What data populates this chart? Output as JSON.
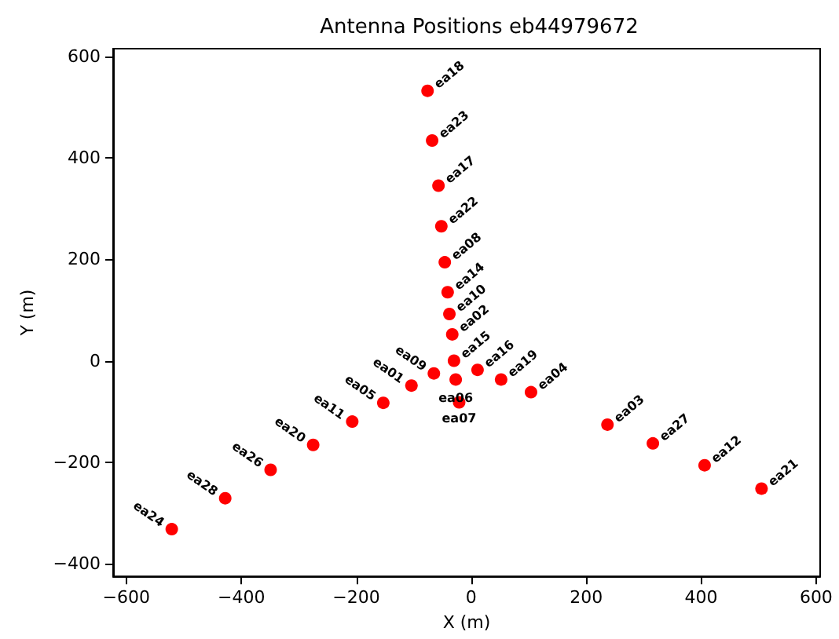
{
  "chart_data": {
    "type": "scatter",
    "title": "Antenna Positions eb44979672",
    "xlabel": "X (m)",
    "ylabel": "Y (m)",
    "x": [
      -76,
      -68,
      -57,
      -52,
      -46,
      -41,
      -38,
      -33,
      -30,
      -65,
      -27,
      -21,
      11,
      52,
      104,
      -104,
      -153,
      -207,
      -275,
      -349,
      -428,
      -521,
      237,
      316,
      406,
      505
    ],
    "series": [
      {
        "color": "#ff0000",
        "values": [
          532,
          434,
          345,
          265,
          194,
          135,
          92,
          52,
          0,
          -25,
          -37,
          -82,
          -18,
          -37,
          -62,
          -49,
          -83,
          -120,
          -166,
          -215,
          -271,
          -332,
          -126,
          -163,
          -206,
          -252
        ],
        "value_labels": [
          "ea18",
          "ea23",
          "ea17",
          "ea22",
          "ea08",
          "ea14",
          "ea10",
          "ea02",
          "ea15",
          "ea09",
          "ea06",
          "ea07",
          "ea16",
          "ea19",
          "ea04",
          "ea01",
          "ea05",
          "ea11",
          "ea20",
          "ea26",
          "ea28",
          "ea24",
          "ea03",
          "ea27",
          "ea12",
          "ea21"
        ]
      }
    ],
    "xlim": [
      -623,
      607
    ],
    "ylim": [
      -425,
      615
    ],
    "xticks": [
      -600,
      -400,
      -200,
      0,
      200,
      400,
      600
    ],
    "yticks": [
      -400,
      -200,
      0,
      200,
      400,
      600
    ],
    "marker": "circle",
    "grid": false
  }
}
